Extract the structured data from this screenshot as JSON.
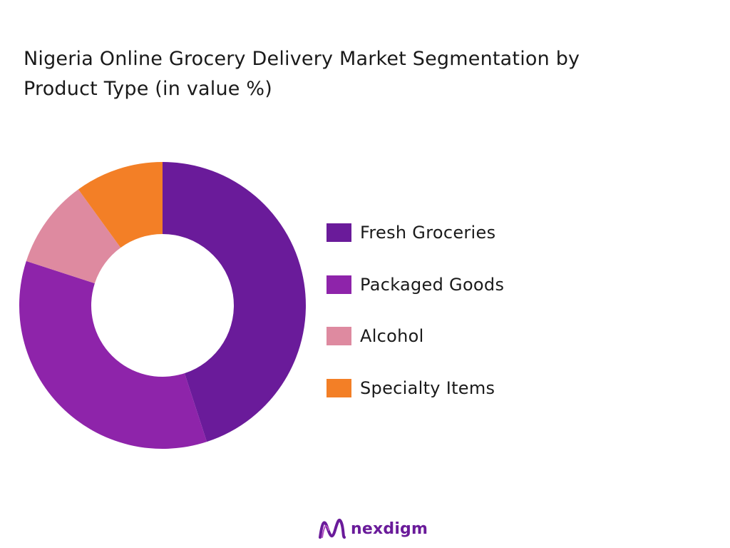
{
  "header": {
    "title_line1": "Nigeria Online Grocery Delivery  Market Segmentation by",
    "title_line2": "Product Type  (in value %)"
  },
  "chart_data": {
    "type": "pie",
    "variant": "donut",
    "categories": [
      "Fresh Groceries",
      "Packaged Goods",
      "Alcohol",
      "Specialty Items"
    ],
    "values": [
      45,
      35,
      10,
      10
    ],
    "colors": [
      "#6a1b9a",
      "#8e24aa",
      "#de8aa0",
      "#f37f26"
    ],
    "legend_position": "right"
  },
  "logo": {
    "text": "nexdigm"
  }
}
